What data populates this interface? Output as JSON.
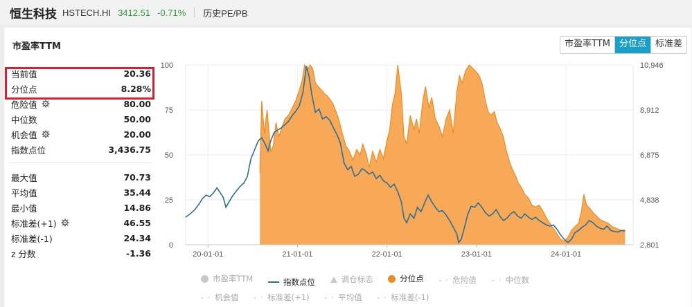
{
  "header": {
    "name": "恒生科技",
    "code": "HSTECH.HI",
    "price": "3412.51",
    "change": "-0.71%",
    "link": "历史PE/PB"
  },
  "panel": {
    "title": "市盈率TTM",
    "tabs": [
      {
        "label": "市盈率TTM",
        "active": false
      },
      {
        "label": "分位点",
        "active": true
      },
      {
        "label": "标准差",
        "active": false
      }
    ]
  },
  "stats_top": [
    {
      "label": "当前值",
      "value": "20.36",
      "gear": false
    },
    {
      "label": "分位点",
      "value": "8.28%",
      "gear": false
    },
    {
      "label": "危险值",
      "value": "80.00",
      "gear": true
    },
    {
      "label": "中位数",
      "value": "50.00",
      "gear": false
    },
    {
      "label": "机会值",
      "value": "20.00",
      "gear": true
    },
    {
      "label": "指数点位",
      "value": "3,436.75",
      "gear": false
    }
  ],
  "stats_bottom": [
    {
      "label": "最大值",
      "value": "70.73",
      "gear": false
    },
    {
      "label": "平均值",
      "value": "35.44",
      "gear": false
    },
    {
      "label": "最小值",
      "value": "14.86",
      "gear": false
    },
    {
      "label": "标准差(+1)",
      "value": "46.55",
      "gear": true
    },
    {
      "label": "标准差(-1)",
      "value": "24.34",
      "gear": false
    },
    {
      "label": "z 分数",
      "value": "-1.36",
      "gear": false
    }
  ],
  "legend": {
    "row1": [
      "市盈率TTM",
      "指数点位",
      "调仓标志",
      "分位点",
      "危险值",
      "中位数"
    ],
    "row2": [
      "机会值",
      "标准差(+1)",
      "平均值",
      "标准差(-1)"
    ]
  },
  "colors": {
    "orange": "#f7a24a",
    "orange_line": "#f08a1e",
    "blue": "#2a6f96",
    "accent": "#1aa0c8",
    "green": "#2c9a3a",
    "red": "#d9202e"
  },
  "chart_data": {
    "type": "area",
    "x_ticks": [
      "20-01-01",
      "21-01-01",
      "22-01-01",
      "23-01-01",
      "24-01-01"
    ],
    "y_left_ticks": [
      "100",
      "75",
      "50",
      "25",
      "0"
    ],
    "y_right_ticks": [
      "10,946",
      "8,912",
      "6,875",
      "4,838",
      "2,801"
    ],
    "ylim_left": [
      0,
      100
    ],
    "ylim_right": [
      2801,
      10946
    ],
    "xlim": [
      2019.75,
      2024.75
    ],
    "series": [
      {
        "name": "分位点",
        "axis": "left",
        "points": [
          [
            2020.58,
            0
          ],
          [
            2020.58,
            40
          ],
          [
            2020.6,
            80
          ],
          [
            2020.63,
            62
          ],
          [
            2020.66,
            75
          ],
          [
            2020.7,
            52
          ],
          [
            2020.73,
            55
          ],
          [
            2020.76,
            68
          ],
          [
            2020.79,
            60
          ],
          [
            2020.83,
            66
          ],
          [
            2020.86,
            70
          ],
          [
            2020.9,
            72
          ],
          [
            2020.94,
            76
          ],
          [
            2020.98,
            80
          ],
          [
            2021.02,
            86
          ],
          [
            2021.05,
            91
          ],
          [
            2021.08,
            100
          ],
          [
            2021.11,
            97
          ],
          [
            2021.14,
            100
          ],
          [
            2021.17,
            98
          ],
          [
            2021.2,
            90
          ],
          [
            2021.23,
            88
          ],
          [
            2021.27,
            86
          ],
          [
            2021.3,
            84
          ],
          [
            2021.33,
            83
          ],
          [
            2021.36,
            81
          ],
          [
            2021.39,
            79
          ],
          [
            2021.43,
            74
          ],
          [
            2021.46,
            70
          ],
          [
            2021.5,
            62
          ],
          [
            2021.54,
            55
          ],
          [
            2021.58,
            52
          ],
          [
            2021.62,
            47
          ],
          [
            2021.66,
            53
          ],
          [
            2021.7,
            50
          ],
          [
            2021.73,
            56
          ],
          [
            2021.77,
            50
          ],
          [
            2021.8,
            43
          ],
          [
            2021.84,
            52
          ],
          [
            2021.88,
            46
          ],
          [
            2021.92,
            53
          ],
          [
            2021.96,
            48
          ],
          [
            2022.0,
            58
          ],
          [
            2022.03,
            64
          ],
          [
            2022.06,
            78
          ],
          [
            2022.09,
            84
          ],
          [
            2022.12,
            100
          ],
          [
            2022.16,
            84
          ],
          [
            2022.19,
            60
          ],
          [
            2022.22,
            56
          ],
          [
            2022.26,
            72
          ],
          [
            2022.3,
            64
          ],
          [
            2022.33,
            70
          ],
          [
            2022.36,
            62
          ],
          [
            2022.4,
            80
          ],
          [
            2022.43,
            88
          ],
          [
            2022.47,
            76
          ],
          [
            2022.5,
            82
          ],
          [
            2022.54,
            70
          ],
          [
            2022.58,
            66
          ],
          [
            2022.62,
            60
          ],
          [
            2022.66,
            70
          ],
          [
            2022.7,
            75
          ],
          [
            2022.74,
            62
          ],
          [
            2022.78,
            85
          ],
          [
            2022.81,
            94
          ],
          [
            2022.84,
            90
          ],
          [
            2022.88,
            97
          ],
          [
            2022.92,
            100
          ],
          [
            2022.96,
            98
          ],
          [
            2023.0,
            96
          ],
          [
            2023.03,
            94
          ],
          [
            2023.06,
            90
          ],
          [
            2023.1,
            80
          ],
          [
            2023.13,
            74
          ],
          [
            2023.16,
            72
          ],
          [
            2023.2,
            74
          ],
          [
            2023.23,
            68
          ],
          [
            2023.27,
            64
          ],
          [
            2023.3,
            60
          ],
          [
            2023.33,
            53
          ],
          [
            2023.37,
            46
          ],
          [
            2023.4,
            42
          ],
          [
            2023.44,
            38
          ],
          [
            2023.47,
            34
          ],
          [
            2023.5,
            32
          ],
          [
            2023.54,
            28
          ],
          [
            2023.58,
            26
          ],
          [
            2023.62,
            22
          ],
          [
            2023.66,
            21
          ],
          [
            2023.7,
            22
          ],
          [
            2023.74,
            19
          ],
          [
            2023.78,
            15
          ],
          [
            2023.82,
            12
          ],
          [
            2023.86,
            9
          ],
          [
            2023.9,
            6
          ],
          [
            2023.94,
            3
          ],
          [
            2023.98,
            2
          ],
          [
            2024.02,
            4
          ],
          [
            2024.06,
            8
          ],
          [
            2024.1,
            10
          ],
          [
            2024.14,
            12
          ],
          [
            2024.17,
            18
          ],
          [
            2024.2,
            28
          ],
          [
            2024.23,
            22
          ],
          [
            2024.27,
            20
          ],
          [
            2024.3,
            18
          ],
          [
            2024.34,
            16
          ],
          [
            2024.38,
            14
          ],
          [
            2024.42,
            13
          ],
          [
            2024.47,
            12
          ],
          [
            2024.52,
            10
          ],
          [
            2024.57,
            9
          ],
          [
            2024.62,
            8
          ],
          [
            2024.66,
            8.28
          ],
          [
            2024.66,
            0
          ]
        ]
      },
      {
        "name": "指数点位",
        "axis": "right",
        "points": [
          [
            2019.75,
            4050
          ],
          [
            2019.8,
            4200
          ],
          [
            2019.85,
            4380
          ],
          [
            2019.9,
            4650
          ],
          [
            2019.94,
            4900
          ],
          [
            2019.98,
            5050
          ],
          [
            2020.02,
            4980
          ],
          [
            2020.06,
            5150
          ],
          [
            2020.1,
            5380
          ],
          [
            2020.13,
            5200
          ],
          [
            2020.17,
            4950
          ],
          [
            2020.2,
            4500
          ],
          [
            2020.24,
            4780
          ],
          [
            2020.28,
            5050
          ],
          [
            2020.32,
            5250
          ],
          [
            2020.36,
            5450
          ],
          [
            2020.4,
            5600
          ],
          [
            2020.44,
            5900
          ],
          [
            2020.48,
            6700
          ],
          [
            2020.52,
            7100
          ],
          [
            2020.56,
            7500
          ],
          [
            2020.6,
            7650
          ],
          [
            2020.64,
            7350
          ],
          [
            2020.67,
            7050
          ],
          [
            2020.7,
            7500
          ],
          [
            2020.74,
            7900
          ],
          [
            2020.78,
            8000
          ],
          [
            2020.82,
            8100
          ],
          [
            2020.86,
            8250
          ],
          [
            2020.9,
            8400
          ],
          [
            2020.94,
            8650
          ],
          [
            2020.98,
            8850
          ],
          [
            2021.02,
            9100
          ],
          [
            2021.06,
            9700
          ],
          [
            2021.1,
            10900
          ],
          [
            2021.13,
            10400
          ],
          [
            2021.16,
            9600
          ],
          [
            2021.2,
            8800
          ],
          [
            2021.24,
            8950
          ],
          [
            2021.28,
            8500
          ],
          [
            2021.32,
            8600
          ],
          [
            2021.36,
            8450
          ],
          [
            2021.4,
            8100
          ],
          [
            2021.44,
            7800
          ],
          [
            2021.48,
            7400
          ],
          [
            2021.52,
            6500
          ],
          [
            2021.56,
            6200
          ],
          [
            2021.6,
            6350
          ],
          [
            2021.64,
            5900
          ],
          [
            2021.68,
            6000
          ],
          [
            2021.72,
            6250
          ],
          [
            2021.76,
            6150
          ],
          [
            2021.8,
            6000
          ],
          [
            2021.84,
            6100
          ],
          [
            2021.88,
            5800
          ],
          [
            2021.92,
            5950
          ],
          [
            2021.96,
            5700
          ],
          [
            2022.0,
            5600
          ],
          [
            2022.04,
            5400
          ],
          [
            2022.08,
            5550
          ],
          [
            2022.12,
            5200
          ],
          [
            2022.16,
            4750
          ],
          [
            2022.19,
            4000
          ],
          [
            2022.22,
            3800
          ],
          [
            2022.26,
            4200
          ],
          [
            2022.3,
            4000
          ],
          [
            2022.34,
            4500
          ],
          [
            2022.38,
            4300
          ],
          [
            2022.42,
            4700
          ],
          [
            2022.46,
            5050
          ],
          [
            2022.5,
            4750
          ],
          [
            2022.54,
            4500
          ],
          [
            2022.58,
            4300
          ],
          [
            2022.62,
            4350
          ],
          [
            2022.66,
            4150
          ],
          [
            2022.7,
            3900
          ],
          [
            2022.74,
            3600
          ],
          [
            2022.78,
            3300
          ],
          [
            2022.8,
            2900
          ],
          [
            2022.83,
            3050
          ],
          [
            2022.86,
            3500
          ],
          [
            2022.9,
            4150
          ],
          [
            2022.94,
            4550
          ],
          [
            2022.98,
            4500
          ],
          [
            2023.02,
            4700
          ],
          [
            2023.06,
            4500
          ],
          [
            2023.1,
            4250
          ],
          [
            2023.14,
            4100
          ],
          [
            2023.18,
            4200
          ],
          [
            2023.22,
            4400
          ],
          [
            2023.26,
            4100
          ],
          [
            2023.3,
            3900
          ],
          [
            2023.34,
            4000
          ],
          [
            2023.38,
            4200
          ],
          [
            2023.42,
            4300
          ],
          [
            2023.46,
            4100
          ],
          [
            2023.5,
            4000
          ],
          [
            2023.54,
            4200
          ],
          [
            2023.58,
            4050
          ],
          [
            2023.62,
            3950
          ],
          [
            2023.66,
            4050
          ],
          [
            2023.7,
            3900
          ],
          [
            2023.74,
            3800
          ],
          [
            2023.78,
            3700
          ],
          [
            2023.82,
            3650
          ],
          [
            2023.86,
            3700
          ],
          [
            2023.9,
            3500
          ],
          [
            2023.94,
            3250
          ],
          [
            2023.98,
            3050
          ],
          [
            2024.02,
            2900
          ],
          [
            2024.06,
            3050
          ],
          [
            2024.1,
            3350
          ],
          [
            2024.14,
            3450
          ],
          [
            2024.18,
            3600
          ],
          [
            2024.22,
            3700
          ],
          [
            2024.26,
            3900
          ],
          [
            2024.3,
            3800
          ],
          [
            2024.34,
            3650
          ],
          [
            2024.38,
            3550
          ],
          [
            2024.42,
            3500
          ],
          [
            2024.46,
            3650
          ],
          [
            2024.5,
            3450
          ],
          [
            2024.54,
            3400
          ],
          [
            2024.58,
            3380
          ],
          [
            2024.62,
            3450
          ],
          [
            2024.66,
            3420
          ]
        ]
      }
    ]
  }
}
